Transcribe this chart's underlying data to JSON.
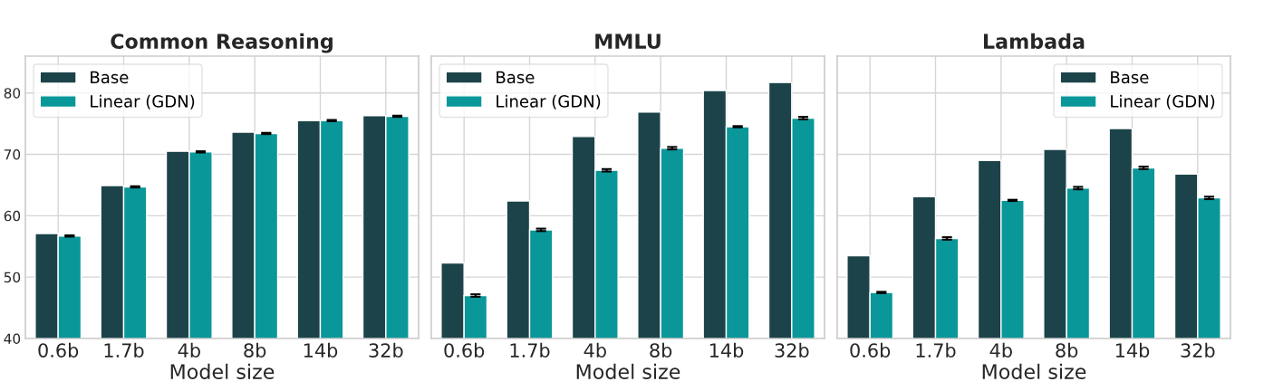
{
  "chart_data": [
    {
      "type": "bar",
      "title": "Common Reasoning",
      "xlabel": "Model size",
      "categories": [
        "0.6b",
        "1.7b",
        "4b",
        "8b",
        "14b",
        "32b"
      ],
      "ylim": [
        40,
        86
      ],
      "yticks": [
        40,
        50,
        60,
        70,
        80
      ],
      "grid": true,
      "legend": "top left",
      "series": [
        {
          "name": "Base",
          "color": "#1c4349",
          "values": [
            57.1,
            64.9,
            70.5,
            73.6,
            75.5,
            76.3
          ]
        },
        {
          "name": "Linear (GDN)",
          "color": "#0a9799",
          "values": [
            56.7,
            64.7,
            70.4,
            73.4,
            75.5,
            76.2
          ],
          "errors": [
            0.1,
            0.1,
            0.1,
            0.1,
            0.1,
            0.1
          ]
        }
      ]
    },
    {
      "type": "bar",
      "title": "MMLU",
      "xlabel": "Model size",
      "categories": [
        "0.6b",
        "1.7b",
        "4b",
        "8b",
        "14b",
        "32b"
      ],
      "ylim": [
        40,
        86
      ],
      "yticks": [
        40,
        50,
        60,
        70,
        80
      ],
      "grid": true,
      "legend": "top left",
      "tick_labels": "x",
      "series": [
        {
          "name": "Base",
          "color": "#1c4349",
          "values": [
            52.3,
            62.4,
            72.9,
            76.9,
            80.4,
            81.7
          ]
        },
        {
          "name": "Linear (GDN)",
          "color": "#0a9799",
          "values": [
            47.0,
            57.7,
            67.4,
            71.0,
            74.5,
            75.9
          ],
          "errors": [
            0.2,
            0.2,
            0.2,
            0.2,
            0.1,
            0.2
          ]
        }
      ]
    },
    {
      "type": "bar",
      "title": "Lambada",
      "xlabel": "Model size",
      "categories": [
        "0.6b",
        "1.7b",
        "4b",
        "8b",
        "14b",
        "32b"
      ],
      "ylim": [
        40,
        86
      ],
      "yticks": [
        40,
        50,
        60,
        70,
        80
      ],
      "grid": true,
      "legend": "top right",
      "tick_labels": "x",
      "series": [
        {
          "name": "Base",
          "color": "#1c4349",
          "values": [
            53.5,
            63.1,
            69.0,
            70.8,
            74.2,
            66.8
          ]
        },
        {
          "name": "Linear (GDN)",
          "color": "#0a9799",
          "values": [
            47.5,
            56.3,
            62.5,
            64.5,
            67.8,
            62.9
          ],
          "errors": [
            0.1,
            0.2,
            0.1,
            0.2,
            0.2,
            0.2
          ]
        }
      ]
    }
  ]
}
